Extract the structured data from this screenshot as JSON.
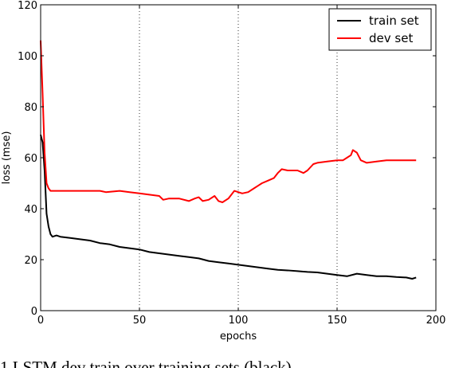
{
  "chart_data": {
    "type": "line",
    "title": "",
    "xlabel": "epochs",
    "ylabel": "loss (mse)",
    "xlim": [
      0,
      200
    ],
    "ylim": [
      0,
      120
    ],
    "xticks": [
      0,
      50,
      100,
      150,
      200
    ],
    "yticks": [
      0,
      20,
      40,
      60,
      80,
      100,
      120
    ],
    "grid": "vertical-dotted",
    "legend": "top-right",
    "series": [
      {
        "name": "train set",
        "color": "#000000",
        "x": [
          0,
          1,
          2,
          3,
          4,
          5,
          6,
          8,
          10,
          15,
          20,
          25,
          30,
          35,
          40,
          45,
          50,
          55,
          60,
          65,
          70,
          75,
          80,
          85,
          90,
          95,
          100,
          105,
          110,
          115,
          120,
          125,
          130,
          135,
          140,
          145,
          150,
          155,
          160,
          165,
          170,
          175,
          180,
          185,
          188,
          190
        ],
        "y": [
          69,
          66,
          55,
          38,
          33,
          30,
          29,
          29.5,
          29,
          28.5,
          28,
          27.5,
          26.5,
          26,
          25,
          24.5,
          24,
          23,
          22.5,
          22,
          21.5,
          21,
          20.5,
          19.5,
          19,
          18.5,
          18,
          17.5,
          17,
          16.5,
          16,
          15.8,
          15.5,
          15.2,
          15,
          14.5,
          14,
          13.5,
          14.5,
          14,
          13.5,
          13.5,
          13.2,
          13,
          12.5,
          13
        ]
      },
      {
        "name": "dev set",
        "color": "#ff0000",
        "x": [
          0,
          1,
          2,
          3,
          4,
          5,
          6,
          8,
          10,
          20,
          30,
          33,
          40,
          45,
          50,
          55,
          60,
          62,
          65,
          70,
          75,
          78,
          80,
          82,
          85,
          88,
          90,
          92,
          95,
          98,
          100,
          102,
          105,
          108,
          110,
          112,
          115,
          118,
          120,
          122,
          125,
          130,
          133,
          135,
          138,
          140,
          145,
          150,
          153,
          155,
          157,
          158,
          160,
          162,
          165,
          170,
          175,
          180,
          185,
          190
        ],
        "y": [
          106,
          85,
          62,
          50,
          48,
          47,
          47,
          47,
          47,
          47,
          47,
          46.5,
          47,
          46.5,
          46,
          45.5,
          45,
          43.5,
          44,
          44,
          43,
          44,
          44.5,
          43,
          43.5,
          45,
          43,
          42.5,
          44,
          47,
          46.5,
          46,
          46.5,
          48,
          49,
          50,
          51,
          52,
          54,
          55.5,
          55,
          55,
          54,
          55,
          57.5,
          58,
          58.5,
          59,
          59,
          60,
          61,
          63,
          62,
          59,
          58,
          58.5,
          59,
          59,
          59,
          59
        ]
      }
    ]
  },
  "caption": {
    "text": "1   LSTM  dev  train  over  training  sets  (black)"
  }
}
